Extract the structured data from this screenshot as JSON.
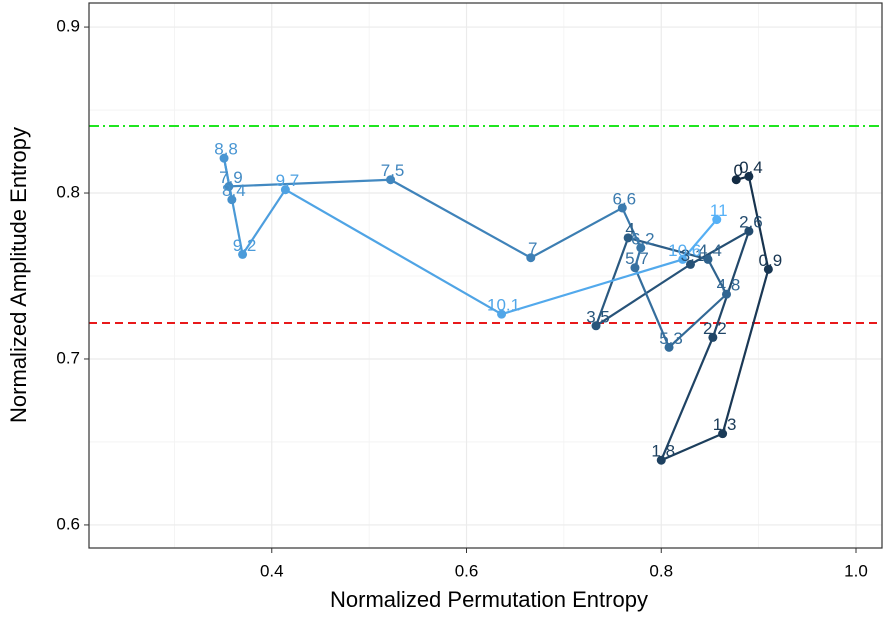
{
  "chart_data": {
    "type": "path",
    "xlabel": "Normalized Permutation Entropy",
    "ylabel": "Normalized Amplitude Entropy",
    "t": [
      0,
      0.4,
      0.9,
      1.3,
      1.8,
      2.2,
      2.6,
      3.1,
      3.5,
      4,
      4.4,
      4.8,
      5.3,
      5.7,
      6.2,
      6.6,
      7,
      7.5,
      7.9,
      8.4,
      8.8,
      9.2,
      9.7,
      10.1,
      10.6,
      11
    ],
    "x": [
      0.877,
      0.89,
      0.91,
      0.863,
      0.8,
      0.853,
      0.89,
      0.83,
      0.733,
      0.766,
      0.848,
      0.867,
      0.808,
      0.773,
      0.779,
      0.76,
      0.666,
      0.522,
      0.356,
      0.359,
      0.351,
      0.37,
      0.414,
      0.636,
      0.822,
      0.857
    ],
    "y": [
      0.808,
      0.81,
      0.754,
      0.655,
      0.639,
      0.713,
      0.777,
      0.757,
      0.72,
      0.773,
      0.76,
      0.739,
      0.707,
      0.755,
      0.767,
      0.791,
      0.761,
      0.808,
      0.804,
      0.796,
      0.821,
      0.763,
      0.802,
      0.727,
      0.76,
      0.784
    ],
    "color_low": "#132b43",
    "color_high": "#56b1f7",
    "hlines": [
      {
        "value": 0.8404,
        "color": "#1fe51f",
        "dash": "10 4 2 4"
      },
      {
        "value": 0.7217,
        "color": "#e8191b",
        "dash": "8 5"
      }
    ],
    "xlim": [
      0.2123,
      1.0267
    ],
    "ylim": [
      0.5861,
      0.9145
    ],
    "xticks": [
      0.4,
      0.6,
      0.8,
      {
        "value": 1,
        "label": "1.0"
      }
    ],
    "yticks": [
      0.6,
      0.7,
      0.8,
      0.9
    ],
    "grid": true
  }
}
